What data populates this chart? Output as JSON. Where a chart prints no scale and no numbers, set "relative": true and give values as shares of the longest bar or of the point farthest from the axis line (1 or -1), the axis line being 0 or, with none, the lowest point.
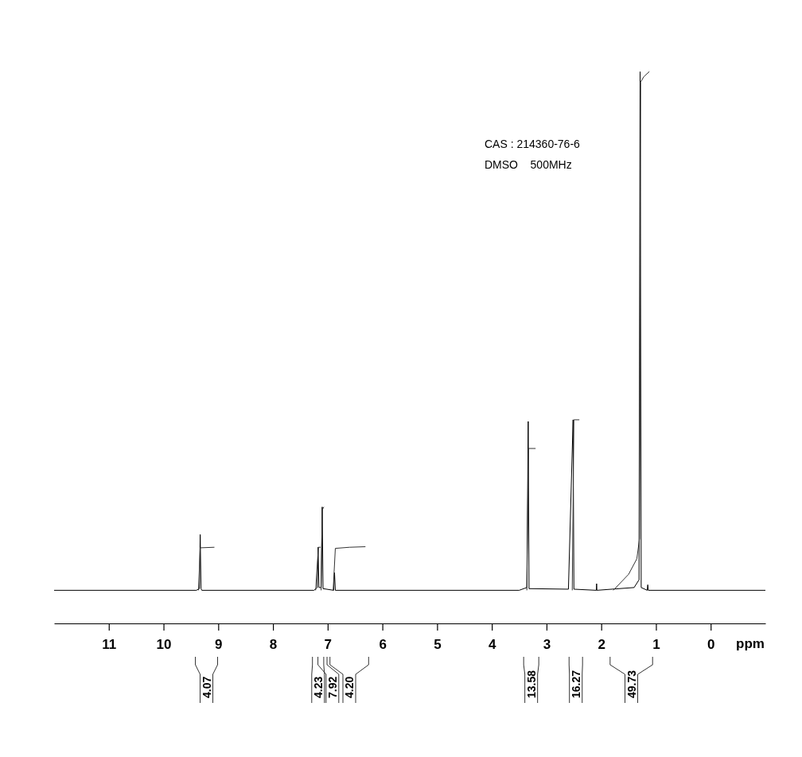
{
  "chart_data": {
    "type": "line",
    "relative": true,
    "xlabel": "ppm",
    "xlim": [
      12,
      -1
    ],
    "xticks": [
      11,
      10,
      9,
      8,
      7,
      6,
      5,
      4,
      3,
      2,
      1,
      0
    ],
    "series": [
      {
        "color": "#000000",
        "x": [
          12,
          9.4,
          9.345,
          9.33,
          9.315,
          9.3,
          7.25,
          7.19,
          7.175,
          7.16,
          7.12,
          7.1,
          7.085,
          6.89,
          6.875,
          6.86,
          3.5,
          3.36,
          3.335,
          3.32,
          2.6,
          2.515,
          2.5,
          2.09,
          2.085,
          2.08,
          1.4,
          1.31,
          1.29,
          1.27,
          1.16,
          1.15,
          1.14,
          -1
        ],
        "values": [
          0.06,
          0.06,
          0.063,
          0.161,
          0.063,
          0.06,
          0.06,
          0.065,
          0.138,
          0.065,
          0.065,
          0.211,
          0.063,
          0.06,
          0.092,
          0.06,
          0.06,
          0.065,
          0.366,
          0.063,
          0.062,
          0.369,
          0.062,
          0.06,
          0.072,
          0.06,
          0.065,
          0.079,
          1.0,
          0.065,
          0.06,
          0.07,
          0.06,
          0.06
        ]
      },
      {
        "color": "#333333",
        "x": [
          9.36,
          9.33,
          9.07
        ],
        "values": [
          0.06,
          0.137,
          0.138
        ]
      },
      {
        "color": "#333333",
        "x": [
          7.22,
          7.17,
          7.13
        ],
        "values": [
          0.06,
          0.138,
          0.138
        ]
      },
      {
        "color": "#333333",
        "x": [
          7.12,
          7.1,
          7.07
        ],
        "values": [
          0.06,
          0.206,
          0.211
        ]
      },
      {
        "color": "#333333",
        "x": [
          6.9,
          6.86,
          6.6,
          6.31
        ],
        "values": [
          0.06,
          0.136,
          0.138,
          0.139
        ]
      },
      {
        "color": "#333333",
        "x": [
          3.36,
          3.33,
          3.2
        ],
        "values": [
          0.06,
          0.317,
          0.317
        ]
      },
      {
        "color": "#333333",
        "x": [
          2.53,
          2.5,
          2.4
        ],
        "values": [
          0.06,
          0.369,
          0.369
        ]
      },
      {
        "color": "#333333",
        "x": [
          1.78,
          1.5,
          1.35,
          1.3,
          1.28,
          1.22,
          1.12
        ],
        "values": [
          0.06,
          0.089,
          0.117,
          0.154,
          0.981,
          0.991,
          1.0
        ]
      }
    ],
    "annotations": [
      "CAS : 214360-76-6",
      "DMSO    500MHz",
      "4.07",
      "4.23",
      "7.92",
      "4.20",
      "13.58",
      "16.27",
      "49.73"
    ],
    "legend": false
  }
}
